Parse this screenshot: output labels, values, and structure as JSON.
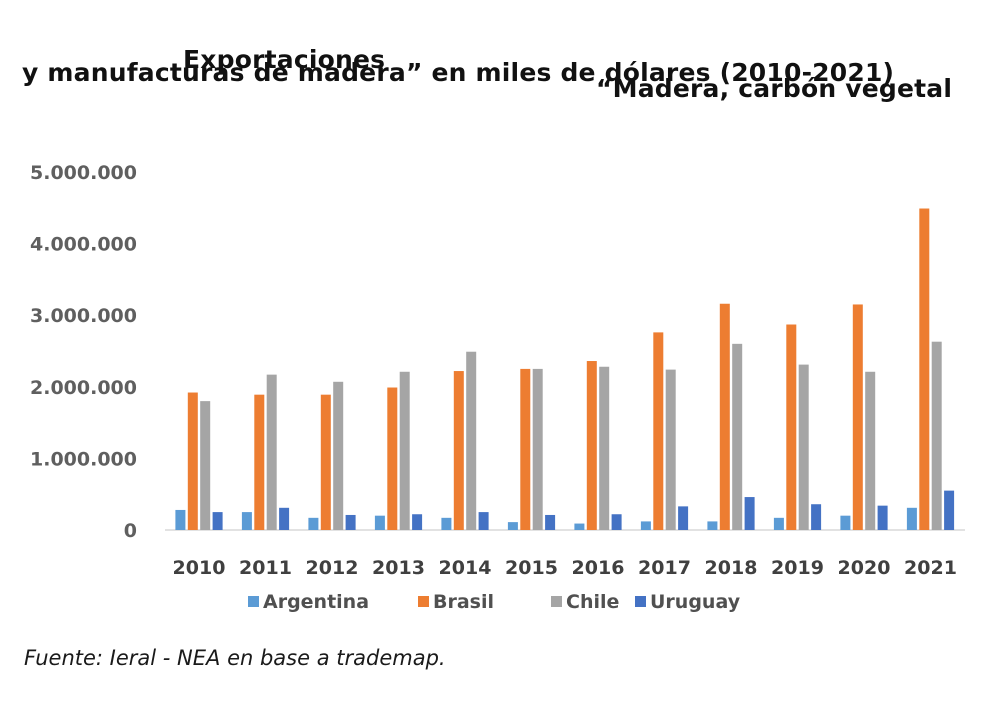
{
  "chart_data": {
    "type": "bar",
    "title_line1_left": "Exportaciones",
    "title_line1_right": "“Madera, carbón vegetal",
    "title_line2": "y manufacturas de madera” en miles de dólares (2010-2021)",
    "xlabel": "",
    "ylabel": "",
    "ylim": [
      0,
      5000000
    ],
    "yticks": [
      0,
      1000000,
      2000000,
      3000000,
      4000000,
      5000000
    ],
    "ytick_labels": [
      "0",
      "1.000.000",
      "2.000.000",
      "3.000.000",
      "4.000.000",
      "5.000.000"
    ],
    "grid": false,
    "legend_position": "bottom",
    "categories": [
      "2010",
      "2011",
      "2012",
      "2013",
      "2014",
      "2015",
      "2016",
      "2017",
      "2018",
      "2019",
      "2020",
      "2021"
    ],
    "series": [
      {
        "name": "Argentina",
        "color": "#5B9BD5",
        "values": [
          280000,
          250000,
          170000,
          200000,
          170000,
          110000,
          90000,
          120000,
          120000,
          170000,
          200000,
          310000
        ]
      },
      {
        "name": "Brasil",
        "color": "#ED7D31",
        "values": [
          1920000,
          1890000,
          1890000,
          1990000,
          2220000,
          2250000,
          2360000,
          2760000,
          3160000,
          2870000,
          3150000,
          4490000
        ]
      },
      {
        "name": "Chile",
        "color": "#A5A5A5",
        "values": [
          1800000,
          2170000,
          2070000,
          2210000,
          2490000,
          2250000,
          2280000,
          2240000,
          2600000,
          2310000,
          2210000,
          2630000
        ]
      },
      {
        "name": "Uruguay",
        "color": "#4472C4",
        "values": [
          250000,
          310000,
          210000,
          220000,
          250000,
          210000,
          220000,
          330000,
          460000,
          360000,
          340000,
          550000
        ]
      }
    ]
  },
  "source_note": "Fuente: Ieral - NEA en base a trademap."
}
